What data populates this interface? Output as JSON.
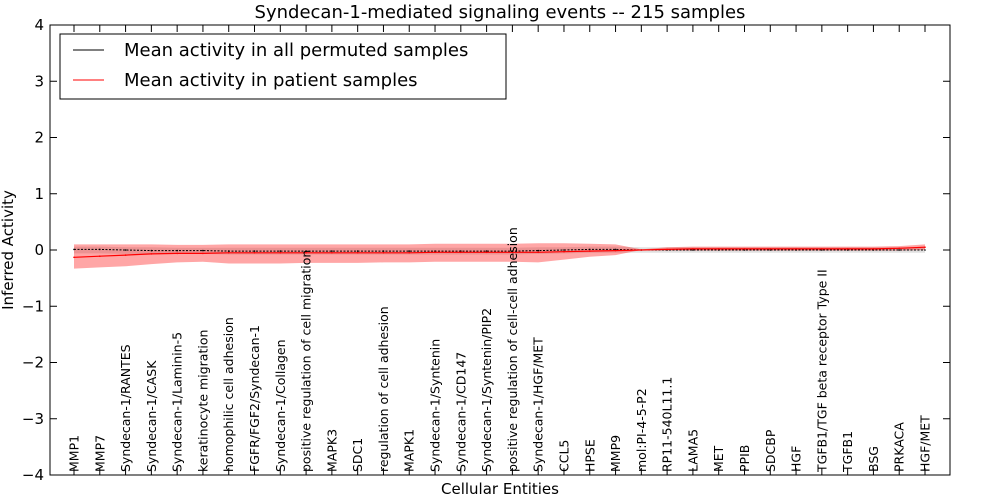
{
  "chart_data": {
    "type": "line",
    "title": "Syndecan-1-mediated signaling events -- 215 samples",
    "xlabel": "Cellular Entities",
    "ylabel": "Inferred Activity",
    "ylim": [
      -4,
      4
    ],
    "yticks": [
      "4",
      "3",
      "2",
      "1",
      "0",
      "−1",
      "−2",
      "−3",
      "−4"
    ],
    "yticks_values": [
      4,
      3,
      2,
      1,
      0,
      -1,
      -2,
      -3,
      -4
    ],
    "legend_position": "top-left",
    "categories": [
      "MMP1",
      "MMP7",
      "Syndecan-1/RANTES",
      "Syndecan-1/CASK",
      "Syndecan-1/Laminin-5",
      "keratinocyte migration",
      "homophilic cell adhesion",
      "FGFR/FGF2/Syndecan-1",
      "Syndecan-1/Collagen",
      "positive regulation of cell migration",
      "MAPK3",
      "SDC1",
      "regulation of cell adhesion",
      "MAPK1",
      "Syndecan-1/Syntenin",
      "Syndecan-1/CD147",
      "Syndecan-1/Syntenin/PIP2",
      "positive regulation of cell-cell adhesion",
      "Syndecan-1/HGF/MET",
      "CCL5",
      "HPSE",
      "MMP9",
      "mol:PI-4-5-P2",
      "RP11-540L11.1",
      "LAMA5",
      "MET",
      "PPIB",
      "SDCBP",
      "HGF",
      "TGFB1/TGF beta receptor Type II",
      "TGFB1",
      "BSG",
      "PRKACA",
      "HGF/MET"
    ],
    "series": [
      {
        "name": "Mean activity in all permuted samples",
        "color": "#000000",
        "values": [
          0.01,
          0.01,
          0.0,
          -0.01,
          -0.01,
          -0.01,
          -0.02,
          -0.02,
          -0.02,
          -0.02,
          -0.02,
          -0.02,
          -0.02,
          -0.02,
          -0.02,
          -0.02,
          -0.02,
          -0.02,
          -0.01,
          0.0,
          0.01,
          0.01,
          0.0,
          0.0,
          0.0,
          0.0,
          0.0,
          0.0,
          0.0,
          0.0,
          0.0,
          0.0,
          0.0,
          0.0
        ],
        "band_lower": [
          -0.06,
          -0.06,
          -0.07,
          -0.07,
          -0.07,
          -0.07,
          -0.08,
          -0.08,
          -0.08,
          -0.08,
          -0.08,
          -0.08,
          -0.08,
          -0.08,
          -0.08,
          -0.08,
          -0.08,
          -0.08,
          -0.07,
          -0.06,
          -0.05,
          -0.05,
          -0.05,
          -0.05,
          -0.05,
          -0.05,
          -0.05,
          -0.05,
          -0.05,
          -0.05,
          -0.05,
          -0.05,
          -0.05,
          -0.05
        ],
        "band_upper": [
          0.06,
          0.06,
          0.05,
          0.05,
          0.04,
          0.04,
          0.04,
          0.04,
          0.04,
          0.04,
          0.04,
          0.04,
          0.04,
          0.04,
          0.04,
          0.04,
          0.04,
          0.04,
          0.05,
          0.05,
          0.06,
          0.06,
          0.05,
          0.05,
          0.05,
          0.05,
          0.05,
          0.05,
          0.05,
          0.05,
          0.05,
          0.05,
          0.05,
          0.05
        ]
      },
      {
        "name": "Mean activity in patient samples",
        "color": "#ff0000",
        "values": [
          -0.13,
          -0.11,
          -0.09,
          -0.07,
          -0.06,
          -0.06,
          -0.05,
          -0.05,
          -0.05,
          -0.05,
          -0.05,
          -0.05,
          -0.05,
          -0.05,
          -0.04,
          -0.04,
          -0.04,
          -0.04,
          -0.04,
          -0.03,
          -0.02,
          -0.01,
          0.0,
          0.01,
          0.02,
          0.02,
          0.02,
          0.02,
          0.02,
          0.02,
          0.02,
          0.02,
          0.03,
          0.05
        ],
        "band_lower": [
          -0.33,
          -0.31,
          -0.29,
          -0.25,
          -0.22,
          -0.21,
          -0.24,
          -0.24,
          -0.24,
          -0.23,
          -0.23,
          -0.23,
          -0.22,
          -0.22,
          -0.21,
          -0.21,
          -0.21,
          -0.21,
          -0.22,
          -0.17,
          -0.12,
          -0.09,
          0.0,
          -0.01,
          -0.01,
          -0.01,
          -0.01,
          -0.01,
          -0.01,
          -0.01,
          -0.01,
          -0.01,
          -0.01,
          0.0
        ],
        "band_upper": [
          0.1,
          0.1,
          0.1,
          0.1,
          0.09,
          0.09,
          0.1,
          0.1,
          0.1,
          0.1,
          0.1,
          0.1,
          0.1,
          0.1,
          0.11,
          0.11,
          0.11,
          0.11,
          0.12,
          0.12,
          0.11,
          0.1,
          0.01,
          0.05,
          0.06,
          0.06,
          0.06,
          0.06,
          0.06,
          0.06,
          0.06,
          0.06,
          0.07,
          0.1
        ]
      }
    ]
  }
}
